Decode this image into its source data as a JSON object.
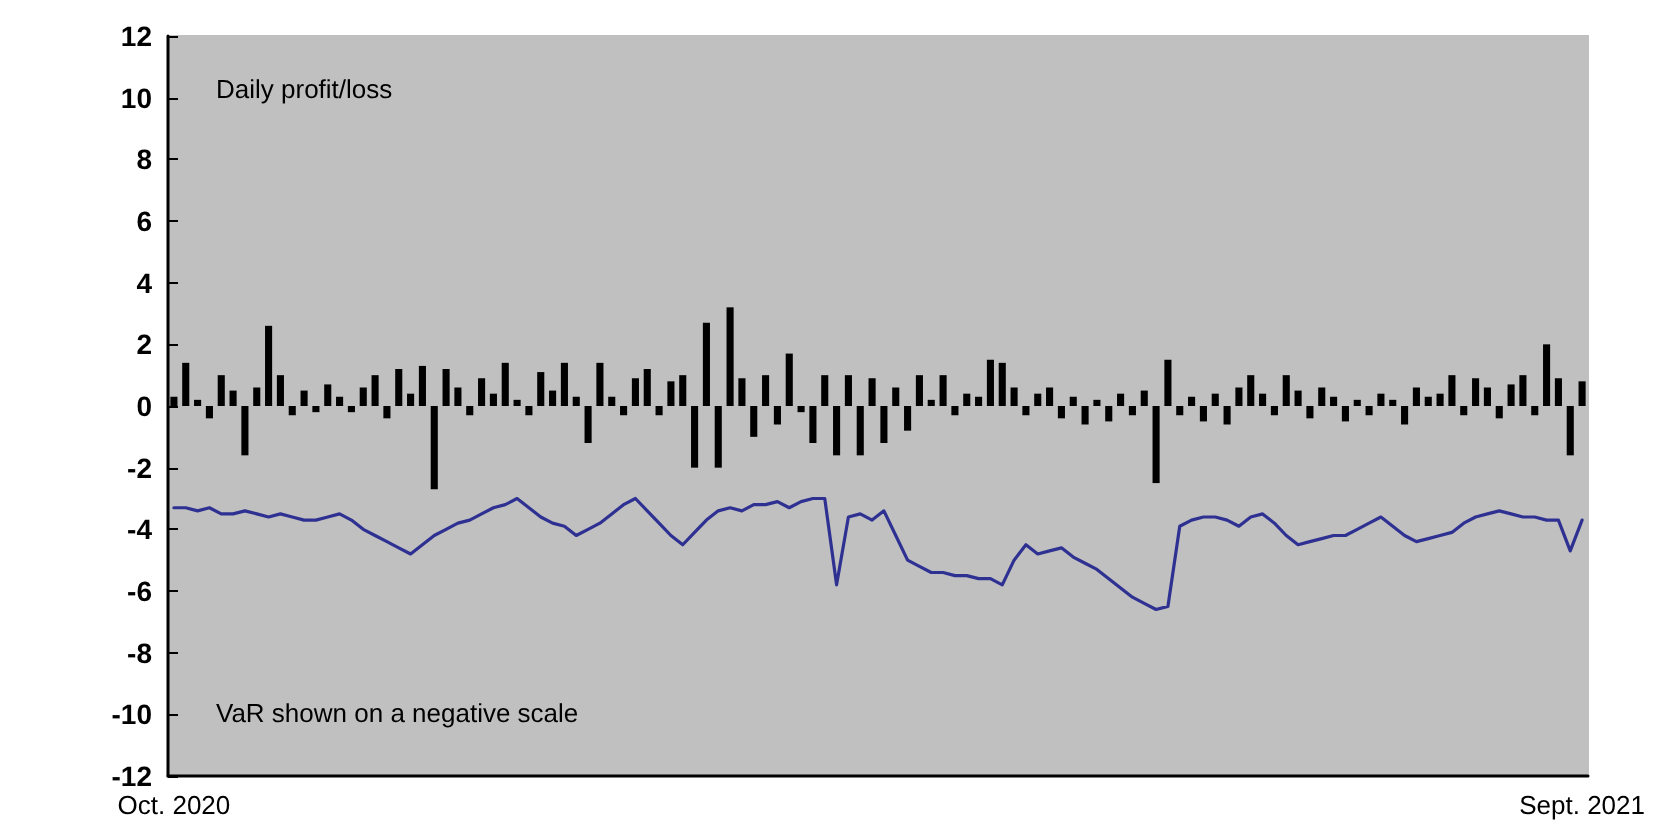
{
  "chart_data": {
    "type": "bar",
    "categories": [
      "Oct. 2020",
      null,
      null,
      null,
      null,
      null,
      null,
      null,
      null,
      null,
      null,
      null,
      null,
      null,
      null,
      null,
      null,
      null,
      null,
      null,
      null,
      null,
      null,
      null,
      null,
      null,
      null,
      null,
      null,
      null,
      null,
      null,
      null,
      null,
      null,
      null,
      null,
      null,
      null,
      null,
      null,
      null,
      null,
      null,
      null,
      null,
      null,
      null,
      null,
      null,
      null,
      null,
      null,
      null,
      null,
      null,
      null,
      null,
      null,
      null,
      null,
      null,
      null,
      null,
      null,
      null,
      null,
      null,
      null,
      null,
      null,
      null,
      null,
      null,
      null,
      null,
      null,
      null,
      null,
      null,
      null,
      null,
      null,
      null,
      null,
      null,
      null,
      null,
      null,
      null,
      null,
      null,
      null,
      null,
      null,
      null,
      null,
      null,
      null,
      null,
      null,
      null,
      null,
      null,
      null,
      null,
      null,
      null,
      null,
      null,
      null,
      null,
      null,
      null,
      null,
      null,
      null,
      null,
      null,
      "Sept. 2021"
    ],
    "series": [
      {
        "color": "#000000",
        "values": [
          0.3,
          1.4,
          0.2,
          -0.4,
          1.0,
          0.5,
          -1.6,
          0.6,
          2.6,
          1.0,
          -0.3,
          0.5,
          -0.2,
          0.7,
          0.3,
          -0.2,
          0.6,
          1.0,
          -0.4,
          1.2,
          0.4,
          1.3,
          -2.7,
          1.2,
          0.6,
          -0.3,
          0.9,
          0.4,
          1.4,
          0.2,
          -0.3,
          1.1,
          0.5,
          1.4,
          0.3,
          -1.2,
          1.4,
          0.3,
          -0.3,
          0.9,
          1.2,
          -0.3,
          0.8,
          1.0,
          -2.0,
          2.7,
          -2.0,
          3.2,
          0.9,
          -1.0,
          1.0,
          -0.6,
          1.7,
          -0.2,
          -1.2,
          1.0,
          -1.6,
          1.0,
          -1.6,
          0.9,
          -1.2,
          0.6,
          -0.8,
          1.0,
          0.2,
          1.0,
          -0.3,
          0.4,
          0.3,
          1.5,
          1.4,
          0.6,
          -0.3,
          0.4,
          0.6,
          -0.4,
          0.3,
          -0.6,
          0.2,
          -0.5,
          0.4,
          -0.3,
          0.5,
          -2.5,
          1.5,
          -0.3,
          0.3,
          -0.5,
          0.4,
          -0.6,
          0.6,
          1.0,
          0.4,
          -0.3,
          1.0,
          0.5,
          -0.4,
          0.6,
          0.3,
          -0.5,
          0.2,
          -0.3,
          0.4,
          0.2,
          -0.6,
          0.6,
          0.3,
          0.4,
          1.0,
          -0.3,
          0.9,
          0.6,
          -0.4,
          0.7,
          1.0,
          -0.3,
          2.0,
          0.9,
          -1.6,
          0.8
        ]
      },
      {
        "type": "line",
        "color": "#2e3192",
        "values": [
          -3.3,
          -3.3,
          -3.4,
          -3.3,
          -3.5,
          -3.5,
          -3.4,
          -3.5,
          -3.6,
          -3.5,
          -3.6,
          -3.7,
          -3.7,
          -3.6,
          -3.5,
          -3.7,
          -4.0,
          -4.2,
          -4.4,
          -4.6,
          -4.8,
          -4.5,
          -4.2,
          -4.0,
          -3.8,
          -3.7,
          -3.5,
          -3.3,
          -3.2,
          -3.0,
          -3.3,
          -3.6,
          -3.8,
          -3.9,
          -4.2,
          -4.0,
          -3.8,
          -3.5,
          -3.2,
          -3.0,
          -3.4,
          -3.8,
          -4.2,
          -4.5,
          -4.1,
          -3.7,
          -3.4,
          -3.3,
          -3.4,
          -3.2,
          -3.2,
          -3.1,
          -3.3,
          -3.1,
          -3.0,
          -3.0,
          -5.8,
          -3.6,
          -3.5,
          -3.7,
          -3.4,
          -4.2,
          -5.0,
          -5.2,
          -5.4,
          -5.4,
          -5.5,
          -5.5,
          -5.6,
          -5.6,
          -5.8,
          -5.0,
          -4.5,
          -4.8,
          -4.7,
          -4.6,
          -4.9,
          -5.1,
          -5.3,
          -5.6,
          -5.9,
          -6.2,
          -6.4,
          -6.6,
          -6.5,
          -3.9,
          -3.7,
          -3.6,
          -3.6,
          -3.7,
          -3.9,
          -3.6,
          -3.5,
          -3.8,
          -4.2,
          -4.5,
          -4.4,
          -4.3,
          -4.2,
          -4.2,
          -4.0,
          -3.8,
          -3.6,
          -3.9,
          -4.2,
          -4.4,
          -4.3,
          -4.2,
          -4.1,
          -3.8,
          -3.6,
          -3.5,
          -3.4,
          -3.5,
          -3.6,
          -3.6,
          -3.7,
          -3.7,
          -4.7,
          -3.7
        ]
      }
    ],
    "ylim": [
      -12,
      12
    ],
    "yticks": [
      -12,
      -10,
      -8,
      -6,
      -4,
      -2,
      0,
      2,
      4,
      6,
      8,
      10,
      12
    ],
    "annotations": [
      "Daily profit/loss",
      "VaR shown on a negative scale"
    ],
    "marker": "none",
    "line_style": "solid"
  }
}
